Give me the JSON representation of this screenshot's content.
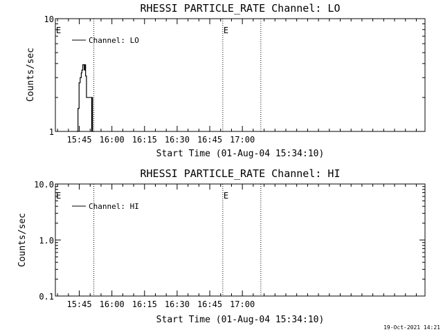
{
  "footer": {
    "timestamp": "19-Oct-2021 14:21"
  },
  "style": {
    "line_color": "#000000",
    "background": "#ffffff"
  },
  "chart_data": [
    {
      "type": "line",
      "title": "RHESSI PARTICLE_RATE Channel: LO",
      "xlabel": "Start Time (01-Aug-04 15:34:10)",
      "ylabel": "Counts/sec",
      "yscale": "log",
      "ylim": [
        1,
        10
      ],
      "ytick_values": [
        1,
        10
      ],
      "ytick_labels": [
        "1",
        "10"
      ],
      "xlim_minutes": [
        0,
        170
      ],
      "xtick_minutes": [
        11,
        26,
        41,
        56,
        71,
        86
      ],
      "xtick_labels": [
        "15:45",
        "16:00",
        "16:15",
        "16:30",
        "16:45",
        "17:00"
      ],
      "legend": {
        "label": "Channel: LO",
        "position": "top-left"
      },
      "event_markers": [
        {
          "minute": 0,
          "label": "E"
        },
        {
          "minute": 77,
          "label": "E"
        }
      ],
      "dotted_lines_minutes": [
        17.7,
        77,
        94.5
      ],
      "series": [
        {
          "name": "Channel: LO",
          "points": [
            [
              9.8,
              1.0
            ],
            [
              10.4,
              1.6
            ],
            [
              10.9,
              2.7
            ],
            [
              11.4,
              3.0
            ],
            [
              11.9,
              3.3
            ],
            [
              12.2,
              3.5
            ],
            [
              12.6,
              3.9
            ],
            [
              13.0,
              3.9
            ],
            [
              13.3,
              3.5
            ],
            [
              13.6,
              3.9
            ],
            [
              13.9,
              3.1
            ],
            [
              14.3,
              2.0
            ],
            [
              15.6,
              2.0
            ],
            [
              16.4,
              2.0
            ],
            [
              16.7,
              1.0
            ],
            [
              16.9,
              2.0
            ],
            [
              17.1,
              1.0
            ]
          ]
        }
      ]
    },
    {
      "type": "line",
      "title": "RHESSI PARTICLE_RATE Channel: HI",
      "xlabel": "Start Time (01-Aug-04 15:34:10)",
      "ylabel": "Counts/sec",
      "yscale": "log",
      "ylim": [
        0.1,
        10
      ],
      "ytick_values": [
        0.1,
        1,
        10
      ],
      "ytick_labels": [
        "0.1",
        "1.0",
        "10.0"
      ],
      "xlim_minutes": [
        0,
        170
      ],
      "xtick_minutes": [
        11,
        26,
        41,
        56,
        71,
        86
      ],
      "xtick_labels": [
        "15:45",
        "16:00",
        "16:15",
        "16:30",
        "16:45",
        "17:00"
      ],
      "legend": {
        "label": "Channel: HI",
        "position": "top-left"
      },
      "event_markers": [
        {
          "minute": 0,
          "label": "E"
        },
        {
          "minute": 77,
          "label": "E"
        }
      ],
      "dotted_lines_minutes": [
        17.7,
        77,
        94.5
      ],
      "series": [
        {
          "name": "Channel: HI",
          "points": []
        }
      ]
    }
  ]
}
